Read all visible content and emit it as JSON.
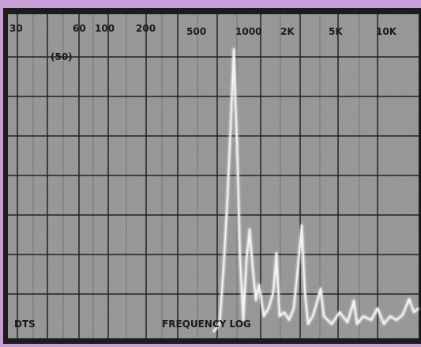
{
  "scale": {
    "labels": [
      "30",
      "60",
      "100",
      "200",
      "500",
      "1000",
      "2K",
      "5K",
      "10K"
    ],
    "level": "(50)"
  },
  "footer": {
    "left": "DTS",
    "center": "FREQUENCY LOG"
  }
}
